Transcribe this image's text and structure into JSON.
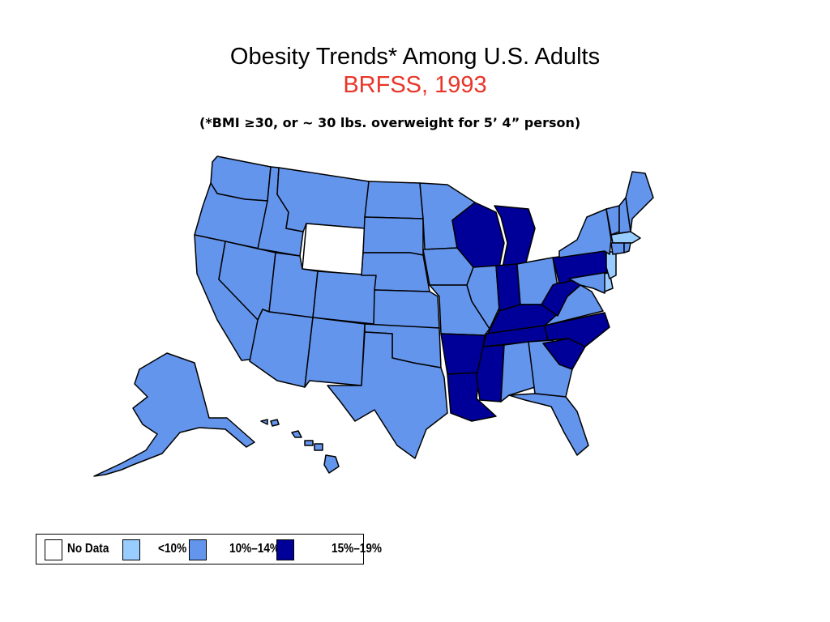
{
  "header": {
    "title": "Obesity Trends* Among U.S. Adults",
    "subtitle": "BRFSS, 1993",
    "footnote": "(*BMI ≥30, or ~ 30 lbs. overweight for 5’ 4” person)"
  },
  "colors": {
    "no_data": "#ffffff",
    "lt10": "#99ccff",
    "p10_14": "#6495ed",
    "p15_19": "#000099",
    "title_accent": "#e8362a"
  },
  "legend": {
    "items": [
      {
        "label": "No Data",
        "category": "no_data"
      },
      {
        "label": "<10%",
        "category": "lt10"
      },
      {
        "label": "10%–14%",
        "category": "p10_14"
      },
      {
        "label": "15%–19%",
        "category": "p15_19"
      }
    ]
  },
  "map_data": {
    "categories": {
      "no_data": [
        "WY"
      ],
      "lt10": [
        "MA",
        "NJ",
        "DE"
      ],
      "p15_19": [
        "WI",
        "MI",
        "IN",
        "KY",
        "WV",
        "PA",
        "TN",
        "NC",
        "SC",
        "AR",
        "LA",
        "MS"
      ],
      "p10_14": [
        "WA",
        "OR",
        "CA",
        "ID",
        "NV",
        "MT",
        "UT",
        "AZ",
        "CO",
        "NM",
        "ND",
        "SD",
        "NE",
        "KS",
        "OK",
        "TX",
        "MN",
        "IA",
        "MO",
        "IL",
        "OH",
        "AL",
        "GA",
        "FL",
        "VA",
        "MD",
        "NY",
        "VT",
        "NH",
        "ME",
        "CT",
        "RI",
        "AK",
        "HI"
      ]
    }
  }
}
